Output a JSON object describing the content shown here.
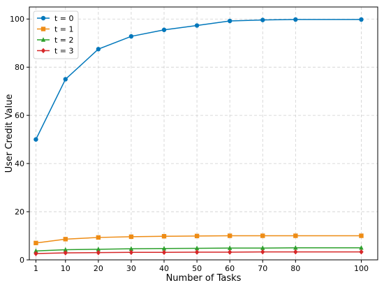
{
  "chart_data": {
    "type": "line",
    "title": "",
    "xlabel": "Number of Tasks",
    "ylabel": "User Credit Value",
    "x": [
      1,
      10,
      20,
      30,
      40,
      50,
      60,
      70,
      80,
      100
    ],
    "xticks": [
      "1",
      "10",
      "20",
      "30",
      "40",
      "50",
      "60",
      "70",
      "80",
      "100"
    ],
    "yticks": [
      "0",
      "20",
      "40",
      "60",
      "80",
      "100"
    ],
    "xlim": [
      -1,
      105
    ],
    "ylim": [
      0,
      105
    ],
    "grid": true,
    "legend_position": "top-left",
    "series": [
      {
        "name": "t = 0",
        "color": "#0077bb",
        "marker": "circle",
        "values": [
          50,
          75,
          87.5,
          92.8,
          95.5,
          97.3,
          99.2,
          99.6,
          99.8,
          99.8
        ]
      },
      {
        "name": "t = 1",
        "color": "#ee8c15",
        "marker": "square",
        "values": [
          7.0,
          8.6,
          9.3,
          9.6,
          9.8,
          9.9,
          10.0,
          10.0,
          10.0,
          10.0
        ]
      },
      {
        "name": "t = 2",
        "color": "#2ca02c",
        "marker": "triangle",
        "values": [
          3.7,
          4.2,
          4.4,
          4.6,
          4.7,
          4.8,
          4.9,
          4.9,
          5.0,
          5.0
        ]
      },
      {
        "name": "t = 3",
        "color": "#d62728",
        "marker": "diamond",
        "values": [
          2.6,
          2.9,
          3.0,
          3.1,
          3.1,
          3.2,
          3.2,
          3.3,
          3.3,
          3.3
        ]
      }
    ]
  }
}
